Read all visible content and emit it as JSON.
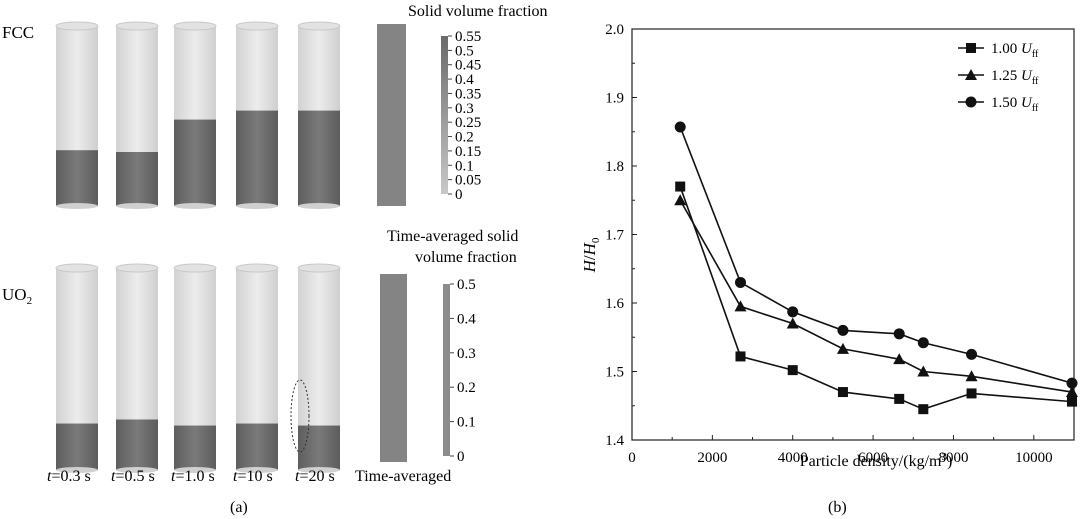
{
  "panel_a": {
    "fcc_label": "FCC",
    "uo2_label": "UO",
    "uo2_sub": "2",
    "colorbar1_title": "Solid volume fraction",
    "colorbar1_ticks": [
      "0.55",
      "0.5",
      "0.45",
      "0.4",
      "0.35",
      "0.3",
      "0.25",
      "0.2",
      "0.15",
      "0.1",
      "0.05",
      "0"
    ],
    "colorbar2_title_line1": "Time-averaged solid",
    "colorbar2_title_line2": "volume fraction",
    "colorbar2_ticks": [
      "0.5",
      "0.4",
      "0.3",
      "0.2",
      "0.1",
      "0"
    ],
    "time_prefix": "t",
    "time_labels": [
      "=0.3 s",
      "=0.5 s",
      "=1.0 s",
      "=10 s",
      "=20 s"
    ],
    "time_averaged_label": "Time-averaged",
    "caption": "(a)",
    "fcc_bed_fraction": [
      0.69,
      0.7,
      0.52,
      0.47,
      0.47
    ],
    "uo2_bed_fraction": [
      0.77,
      0.75,
      0.78,
      0.77,
      0.78
    ]
  },
  "panel_b": {
    "caption": "(b)",
    "ylabel_main": "H",
    "ylabel_slash": "/",
    "ylabel_h0": "H",
    "ylabel_h0_sub": "0",
    "xlabel": "Particle density/(kg/m",
    "xlabel_sup": "3",
    "xlabel_end": ")",
    "legend_sym": "U",
    "legend_sub": "ff"
  },
  "chart_data": {
    "type": "line",
    "xlabel": "Particle density/(kg/m3)",
    "ylabel": "H/H0",
    "xlim": [
      0,
      11000
    ],
    "ylim": [
      1.4,
      2.0
    ],
    "xticks": [
      0,
      2000,
      4000,
      6000,
      8000,
      10000
    ],
    "yticks": [
      1.4,
      1.5,
      1.6,
      1.7,
      1.8,
      1.9,
      2.0
    ],
    "grid": false,
    "legend_position": "top-right",
    "series": [
      {
        "name": "1.00 Uff",
        "marker": "square",
        "x": [
          1200,
          2700,
          4000,
          5250,
          6650,
          7250,
          8450,
          10950
        ],
        "y": [
          1.77,
          1.522,
          1.502,
          1.47,
          1.46,
          1.445,
          1.468,
          1.456
        ]
      },
      {
        "name": "1.25 Uff",
        "marker": "triangle",
        "x": [
          1200,
          2700,
          4000,
          5250,
          6650,
          7250,
          8450,
          10950
        ],
        "y": [
          1.75,
          1.595,
          1.57,
          1.533,
          1.518,
          1.5,
          1.493,
          1.47
        ]
      },
      {
        "name": "1.50 Uff",
        "marker": "circle",
        "x": [
          1200,
          2700,
          4000,
          5250,
          6650,
          7250,
          8450,
          10950
        ],
        "y": [
          1.857,
          1.63,
          1.587,
          1.56,
          1.555,
          1.542,
          1.525,
          1.483
        ]
      }
    ]
  }
}
